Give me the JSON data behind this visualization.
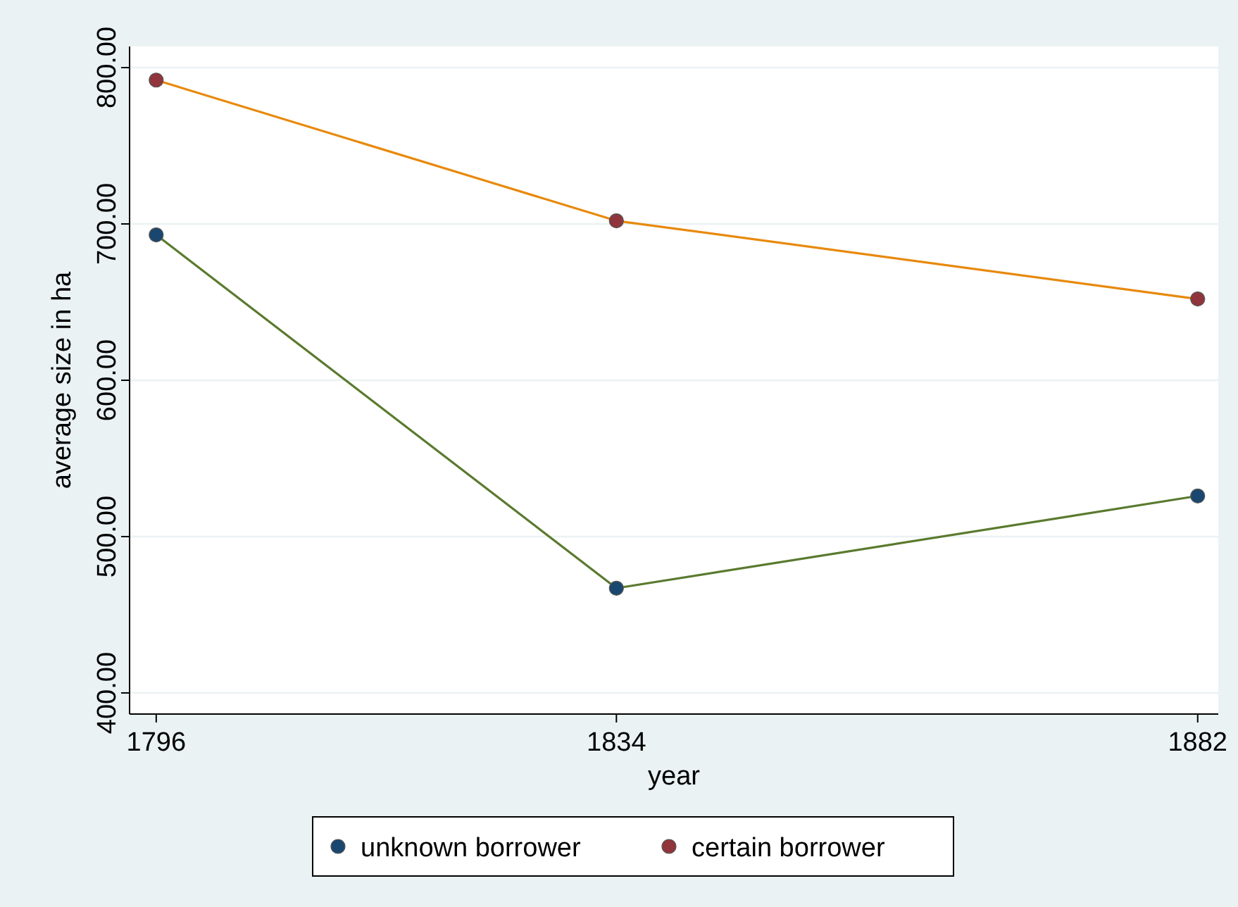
{
  "chart_data": {
    "type": "line",
    "xlabel": "year",
    "ylabel": "average size in ha",
    "x": [
      1796,
      1834,
      1882
    ],
    "series": [
      {
        "type": "line",
        "color": "#5a7a2e",
        "values": [
          693,
          467,
          526
        ],
        "marker": "none"
      },
      {
        "type": "line",
        "color": "#e8890c",
        "values": [
          792,
          702,
          652
        ],
        "marker": "none"
      },
      {
        "type": "scatter",
        "name": "unknown borrower",
        "color": "#1a476f",
        "values": [
          693,
          467,
          526
        ],
        "marker": "circle"
      },
      {
        "type": "scatter",
        "name": "certain borrower",
        "color": "#90353b",
        "values": [
          792,
          702,
          652
        ],
        "marker": "circle"
      }
    ],
    "xlim": [
      1793.8,
      1883.7
    ],
    "xticks": [
      1796,
      1834,
      1882
    ],
    "ylim": [
      386.5,
      813.5
    ],
    "yticks": [
      {
        "value": 400,
        "label": "400.00"
      },
      {
        "value": 500,
        "label": "500.00"
      },
      {
        "value": 600,
        "label": "600.00"
      },
      {
        "value": 700,
        "label": "700.00"
      },
      {
        "value": 800,
        "label": "800.00"
      }
    ],
    "grid": "y",
    "legend": "bottom"
  }
}
